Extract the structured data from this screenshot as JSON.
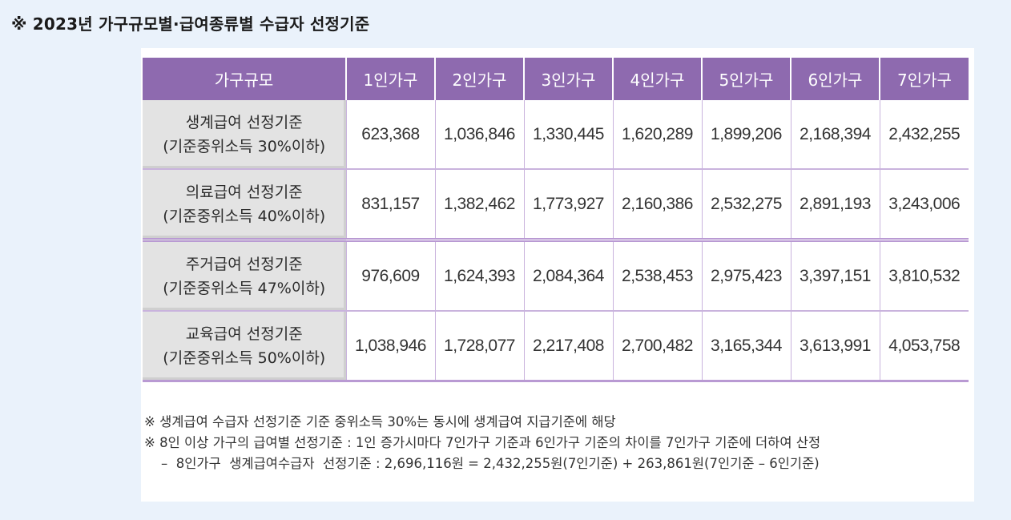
{
  "heading": "※ 2023년 가구규모별·급여종류별 수급자 선정기준",
  "table": {
    "headers": [
      "가구규모",
      "1인가구",
      "2인가구",
      "3인가구",
      "4인가구",
      "5인가구",
      "6인가구",
      "7인가구"
    ],
    "rows": [
      {
        "label_line1": "생계급여  선정기준",
        "label_line2": "(기준중위소득 30%이하)",
        "values": [
          "623,368",
          "1,036,846",
          "1,330,445",
          "1,620,289",
          "1,899,206",
          "2,168,394",
          "2,432,255"
        ]
      },
      {
        "label_line1": "의료급여  선정기준",
        "label_line2": "(기준중위소득 40%이하)",
        "values": [
          "831,157",
          "1,382,462",
          "1,773,927",
          "2,160,386",
          "2,532,275",
          "2,891,193",
          "3,243,006"
        ]
      },
      {
        "label_line1": "주거급여  선정기준",
        "label_line2": "(기준중위소득 47%이하)",
        "values": [
          "976,609",
          "1,624,393",
          "2,084,364",
          "2,538,453",
          "2,975,423",
          "3,397,151",
          "3,810,532"
        ]
      },
      {
        "label_line1": "교육급여  선정기준",
        "label_line2": "(기준중위소득 50%이하)",
        "values": [
          "1,038,946",
          "1,728,077",
          "2,217,408",
          "2,700,482",
          "3,165,344",
          "3,613,991",
          "4,053,758"
        ]
      }
    ]
  },
  "notes": [
    "※  생계급여  수급자  선정기준  기준  중위소득  30%는 동시에  생계급여  지급기준에  해당",
    "※  8인 이상 가구의 급여별 선정기준 : 1인 증가시마다 7인가구 기준과 6인가구 기준의 차이를 7인가구 기준에 더하여 산정",
    "    –  8인가구  생계급여수급자  선정기준 : 2,696,116원 = 2,432,255원(7인기준) + 263,861원(7인기준 – 6인기준)"
  ]
}
